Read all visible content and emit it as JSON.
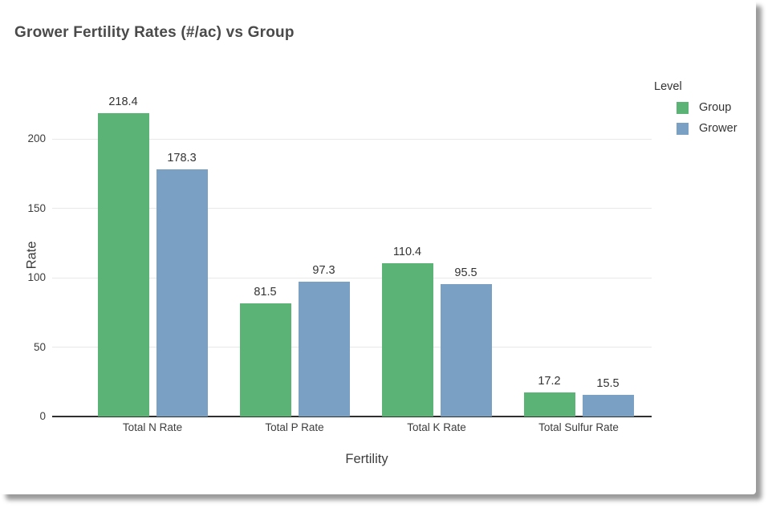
{
  "chart_data": {
    "type": "bar",
    "title": "Grower Fertility Rates (#/ac) vs Group",
    "categories": [
      "Total N Rate",
      "Total P Rate",
      "Total K Rate",
      "Total Sulfur Rate"
    ],
    "series": [
      {
        "name": "Group",
        "color": "#5bb475",
        "values": [
          218.4,
          81.5,
          110.4,
          17.2
        ]
      },
      {
        "name": "Grower",
        "color": "#7aa1c4",
        "values": [
          178.3,
          97.3,
          95.5,
          15.5
        ]
      }
    ],
    "xlabel": "Fertility",
    "ylabel": "Rate",
    "yticks": [
      0,
      50,
      100,
      150,
      200
    ],
    "ylim": [
      0,
      230
    ],
    "grid": "horizontal",
    "value_labels": true,
    "legend": {
      "title": "Level",
      "position": "top-right"
    }
  }
}
